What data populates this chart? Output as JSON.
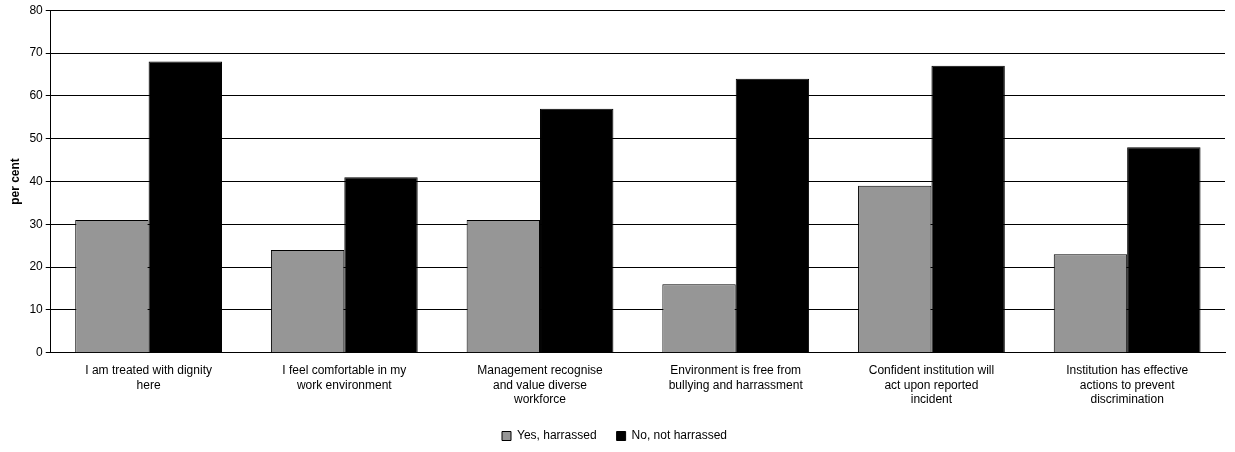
{
  "chart_data": {
    "type": "bar",
    "ylabel": "per cent",
    "categories": [
      "I am treated with dignity here",
      "I feel comfortable in my work environment",
      "Management recognise and value diverse workforce",
      "Environment is free from bullying and harrassment",
      "Confident institution will act upon reported incident",
      "Institution has effective actions to prevent discrimination"
    ],
    "series": [
      {
        "name": "Yes, harrassed",
        "color": "#969696",
        "values": [
          31,
          24,
          31,
          16,
          39,
          23
        ]
      },
      {
        "name": "No, not harrassed",
        "color": "#000000",
        "values": [
          68,
          41,
          57,
          64,
          67,
          48
        ]
      }
    ],
    "ylim": [
      0,
      80
    ],
    "yticks": [
      0,
      10,
      20,
      30,
      40,
      50,
      60,
      70,
      80
    ],
    "grid": "y",
    "legend": "bottom"
  }
}
